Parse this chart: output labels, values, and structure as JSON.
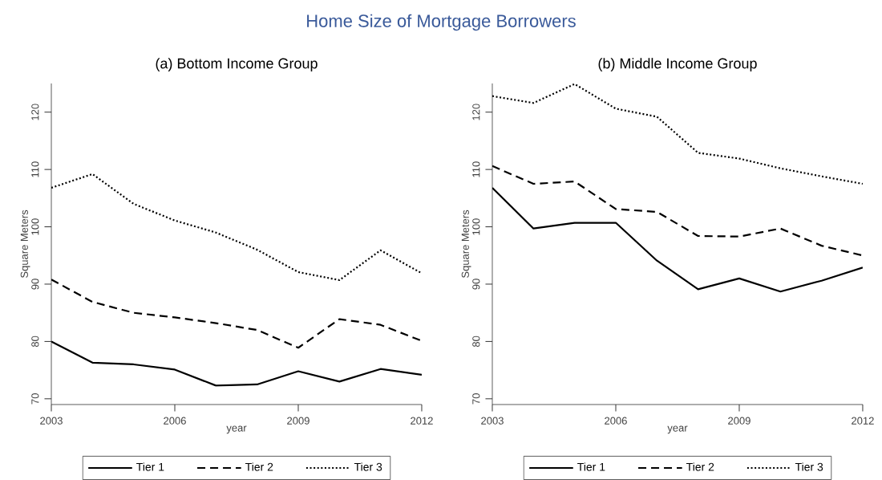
{
  "chart_data": [
    {
      "type": "line",
      "title": "Home Size of Mortgage Borrowers",
      "subtitle": "(a) Bottom Income Group",
      "xlabel": "year",
      "ylabel": "Square Meters",
      "x": [
        2003,
        2004,
        2005,
        2006,
        2007,
        2008,
        2009,
        2010,
        2011,
        2012
      ],
      "series": [
        {
          "name": "Tier 1",
          "color": "#000000",
          "line_style": "solid",
          "values": [
            80,
            76.3,
            76,
            75.1,
            72.3,
            72.5,
            74.8,
            73,
            75.2,
            74.2
          ]
        },
        {
          "name": "Tier 2",
          "color": "#000000",
          "line_style": "dashed",
          "values": [
            90.8,
            86.9,
            85,
            84.2,
            83.2,
            82,
            78.9,
            83.9,
            82.9,
            80.1
          ]
        },
        {
          "name": "Tier 3",
          "color": "#000000",
          "line_style": "dotted",
          "values": [
            106.8,
            109.2,
            104,
            101.1,
            99,
            96,
            92.1,
            90.7,
            95.9,
            91.9
          ]
        }
      ],
      "xlim": [
        2003,
        2012
      ],
      "ylim": [
        69,
        125
      ],
      "xticks": [
        2003,
        2006,
        2009,
        2012
      ],
      "yticks": [
        70,
        80,
        90,
        100,
        110,
        120
      ],
      "grid": false,
      "legend": "bottom",
      "marker": "none"
    },
    {
      "type": "line",
      "subtitle": "(b) Middle Income Group",
      "xlabel": "year",
      "ylabel": "Square Meters",
      "x": [
        2003,
        2004,
        2005,
        2006,
        2007,
        2008,
        2009,
        2010,
        2011,
        2012
      ],
      "series": [
        {
          "name": "Tier 1",
          "color": "#000000",
          "line_style": "solid",
          "values": [
            106.8,
            99.7,
            100.7,
            100.7,
            94.1,
            89.1,
            91,
            88.7,
            90.6,
            92.9
          ]
        },
        {
          "name": "Tier 2",
          "color": "#000000",
          "line_style": "dashed",
          "values": [
            110.6,
            107.5,
            107.9,
            103.1,
            102.6,
            98.4,
            98.3,
            99.7,
            96.7,
            95
          ]
        },
        {
          "name": "Tier 3",
          "color": "#000000",
          "line_style": "dotted",
          "values": [
            122.8,
            121.6,
            124.9,
            120.6,
            119.2,
            112.9,
            111.9,
            110.2,
            108.8,
            107.5
          ]
        }
      ],
      "xlim": [
        2003,
        2012
      ],
      "ylim": [
        69,
        125
      ],
      "xticks": [
        2003,
        2006,
        2009,
        2012
      ],
      "yticks": [
        70,
        80,
        90,
        100,
        110,
        120
      ],
      "grid": false,
      "legend": "bottom",
      "marker": "none"
    }
  ]
}
